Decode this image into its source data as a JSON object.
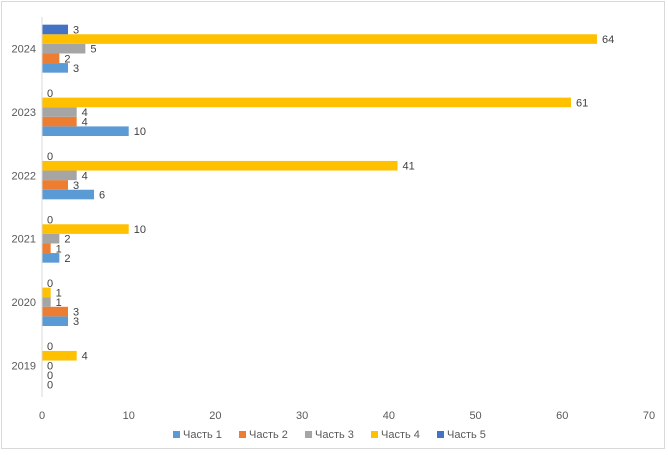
{
  "chart_data": {
    "type": "bar",
    "orientation": "horizontal",
    "categories": [
      "2019",
      "2020",
      "2021",
      "2022",
      "2023",
      "2024"
    ],
    "series": [
      {
        "name": "Часть 1",
        "color": "#5b9bd5",
        "values": [
          0,
          3,
          2,
          6,
          10,
          3
        ]
      },
      {
        "name": "Часть 2",
        "color": "#ed7d31",
        "values": [
          0,
          3,
          1,
          3,
          4,
          2
        ]
      },
      {
        "name": "Часть 3",
        "color": "#a5a5a5",
        "values": [
          0,
          1,
          2,
          4,
          4,
          5
        ]
      },
      {
        "name": "Часть 4",
        "color": "#ffc000",
        "values": [
          4,
          1,
          10,
          41,
          61,
          64
        ]
      },
      {
        "name": "Часть 5",
        "color": "#4472c4",
        "values": [
          0,
          0,
          0,
          0,
          0,
          3
        ]
      }
    ],
    "xlim": [
      0,
      70
    ],
    "xticks": [
      "0",
      "10",
      "20",
      "30",
      "40",
      "50",
      "60",
      "70"
    ],
    "data_labels": true,
    "legend": "bottom",
    "grid": false
  }
}
